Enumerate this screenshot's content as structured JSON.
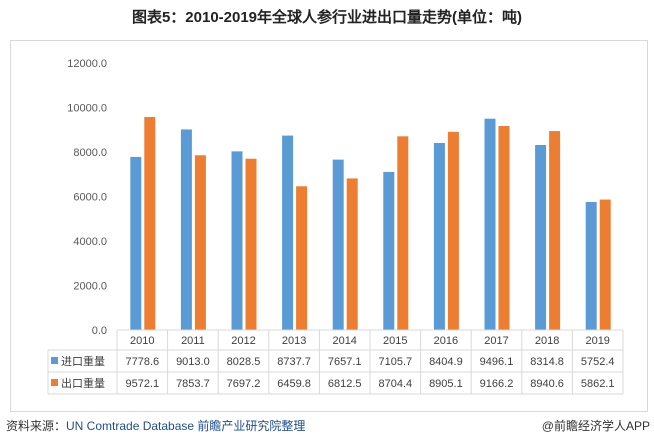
{
  "chart_data": {
    "type": "bar",
    "title": "图表5：2010-2019年全球人参行业进出口量走势(单位：吨)",
    "categories": [
      "2010",
      "2011",
      "2012",
      "2013",
      "2014",
      "2015",
      "2016",
      "2017",
      "2018",
      "2019"
    ],
    "series": [
      {
        "name": "进口重量",
        "color": "#5b9bd5",
        "values": [
          7778.6,
          9013.0,
          8028.5,
          8737.7,
          7657.1,
          7105.7,
          8404.9,
          9496.1,
          8314.8,
          5752.4
        ],
        "labels": [
          "7778.6",
          "9013.0",
          "8028.5",
          "8737.7",
          "7657.1",
          "7105.7",
          "8404.9",
          "9496.1",
          "8314.8",
          "5752.4"
        ]
      },
      {
        "name": "出口重量",
        "color": "#ed7d31",
        "values": [
          9572.1,
          7853.7,
          7697.2,
          6459.8,
          6812.5,
          8704.4,
          8905.1,
          9166.2,
          8940.6,
          5862.1
        ],
        "labels": [
          "9572.1",
          "7853.7",
          "7697.2",
          "6459.8",
          "6812.5",
          "8704.4",
          "8905.1",
          "9166.2",
          "8940.6",
          "5862.1"
        ]
      }
    ],
    "ylim": [
      0,
      12000
    ],
    "yticks": [
      "0.0",
      "2000.0",
      "4000.0",
      "6000.0",
      "8000.0",
      "10000.0",
      "12000.0"
    ],
    "ytick_values": [
      0,
      2000,
      4000,
      6000,
      8000,
      10000,
      12000
    ],
    "grid": false,
    "legend": "data-table"
  },
  "footer": {
    "source_prefix": "资料来源：",
    "source": "UN Comtrade Database 前瞻产业研究院整理",
    "credit": "@前瞻经济学人APP"
  }
}
